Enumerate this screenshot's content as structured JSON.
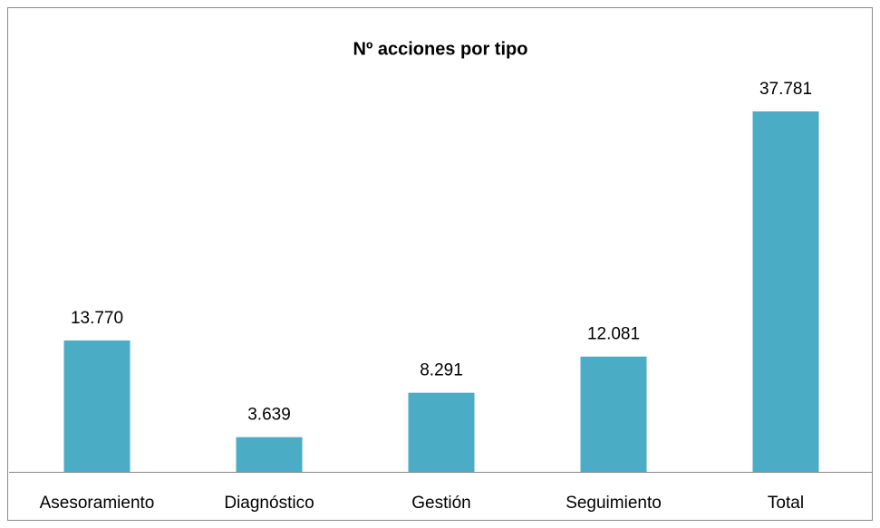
{
  "chart_data": {
    "type": "bar",
    "title": "Nº acciones por tipo",
    "categories": [
      "Asesoramiento",
      "Diagnóstico",
      "Gestión",
      "Seguimiento",
      "Total"
    ],
    "values": [
      13770,
      3639,
      8291,
      12081,
      37781
    ],
    "value_labels": [
      "13.770",
      "3.639",
      "8.291",
      "12.081",
      "37.781"
    ],
    "color": "#4BACC6"
  }
}
